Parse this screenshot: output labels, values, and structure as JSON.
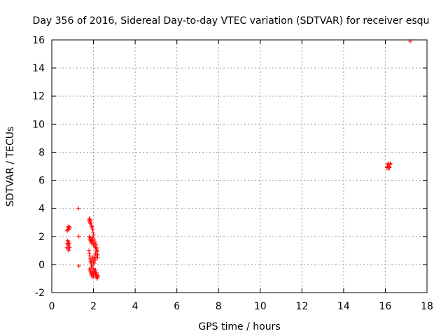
{
  "chart_data": {
    "type": "scatter",
    "title": "Day 356 of 2016, Sidereal Day-to-day VTEC variation (SDTVAR) for receiver esqu",
    "xlabel": "GPS time / hours",
    "ylabel": "SDTVAR / TECUs",
    "xlim": [
      0,
      18
    ],
    "ylim": [
      -2,
      16
    ],
    "xticks": [
      "0",
      "2",
      "4",
      "6",
      "8",
      "10",
      "12",
      "14",
      "16",
      "18"
    ],
    "yticks": [
      "-2",
      "0",
      "2",
      "4",
      "6",
      "8",
      "10",
      "12",
      "14",
      "16"
    ],
    "grid": true,
    "marker": "+",
    "color": "#ff0000",
    "series": [
      {
        "name": "SDTVAR",
        "x": [
          0.72,
          0.74,
          0.76,
          0.78,
          0.78,
          0.8,
          0.8,
          0.82,
          0.84,
          0.86,
          0.74,
          0.76,
          0.78,
          0.8,
          0.82,
          0.84,
          0.86,
          1.28,
          1.3,
          1.3,
          1.78,
          1.8,
          1.82,
          1.84,
          1.86,
          1.88,
          1.9,
          1.92,
          1.94,
          1.96,
          1.98,
          2.0,
          1.8,
          1.82,
          1.84,
          1.86,
          1.88,
          1.9,
          1.92,
          1.94,
          1.96,
          1.98,
          2.0,
          2.02,
          2.04,
          2.06,
          2.08,
          2.1,
          2.12,
          2.14,
          2.16,
          2.18,
          2.2,
          1.78,
          1.8,
          1.82,
          1.84,
          1.86,
          1.88,
          1.9,
          1.92,
          1.94,
          1.96,
          1.98,
          2.0,
          2.02,
          2.04,
          2.06,
          2.08,
          2.1,
          2.12,
          2.14,
          2.16,
          2.18,
          2.2,
          1.82,
          1.84,
          1.86,
          1.88,
          1.9,
          1.92,
          1.94,
          1.96,
          1.98,
          2.0,
          2.02,
          2.04,
          2.06,
          2.08,
          2.1,
          2.12,
          2.14,
          2.16,
          2.18,
          2.2,
          2.22,
          1.9,
          2.0,
          2.1,
          2.15,
          16.08,
          16.1,
          16.12,
          16.14,
          16.16,
          16.18,
          16.2,
          16.22,
          16.24,
          17.2
        ],
        "y": [
          1.2,
          1.5,
          1.7,
          1.4,
          1.1,
          1.6,
          1.3,
          1.0,
          1.5,
          1.2,
          2.4,
          2.5,
          2.7,
          2.6,
          2.5,
          2.7,
          2.6,
          4.0,
          2.0,
          -0.1,
          3.1,
          3.3,
          3.2,
          3.0,
          2.9,
          3.1,
          2.8,
          2.7,
          2.6,
          2.5,
          2.3,
          2.1,
          2.0,
          1.8,
          1.9,
          1.7,
          1.6,
          1.8,
          1.5,
          1.7,
          1.9,
          1.6,
          1.4,
          1.8,
          1.5,
          1.3,
          1.6,
          1.2,
          1.4,
          1.1,
          1.0,
          0.7,
          0.5,
          1.0,
          0.8,
          0.6,
          0.4,
          0.2,
          0.3,
          0.1,
          0.0,
          -0.1,
          0.5,
          0.3,
          0.2,
          0.4,
          0.1,
          0.6,
          0.3,
          0.8,
          0.5,
          1.2,
          0.9,
          1.0,
          0.7,
          -0.3,
          -0.4,
          -0.5,
          -0.6,
          -0.7,
          -0.8,
          -0.5,
          -0.6,
          -0.9,
          -0.7,
          -0.5,
          -0.4,
          -0.6,
          -0.8,
          -0.6,
          -0.7,
          -0.9,
          -0.8,
          -1.0,
          -0.9,
          -0.8,
          -0.2,
          -0.3,
          -0.4,
          -0.6,
          6.9,
          7.1,
          7.0,
          6.8,
          7.2,
          7.0,
          6.9,
          7.1,
          7.2,
          15.9
        ]
      }
    ]
  }
}
